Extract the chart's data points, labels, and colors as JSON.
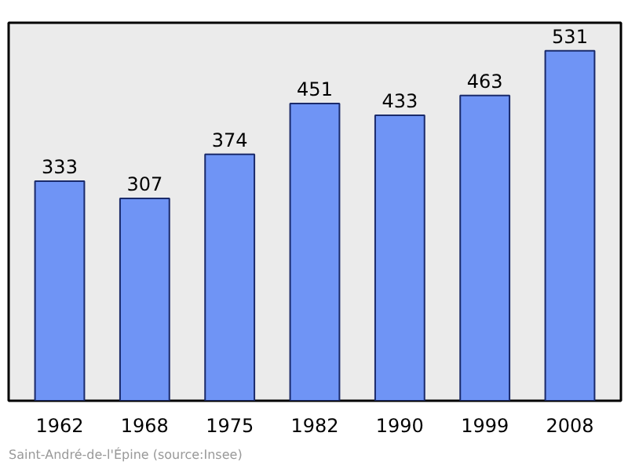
{
  "chart_data": {
    "type": "bar",
    "categories": [
      "1962",
      "1968",
      "1975",
      "1982",
      "1990",
      "1999",
      "2008"
    ],
    "values": [
      333,
      307,
      374,
      451,
      433,
      463,
      531
    ],
    "color": "#6f94f5",
    "data_labels": true,
    "grid": false,
    "annotations": [
      "Saint-André-de-l'Épine    (source:Insee)"
    ]
  }
}
